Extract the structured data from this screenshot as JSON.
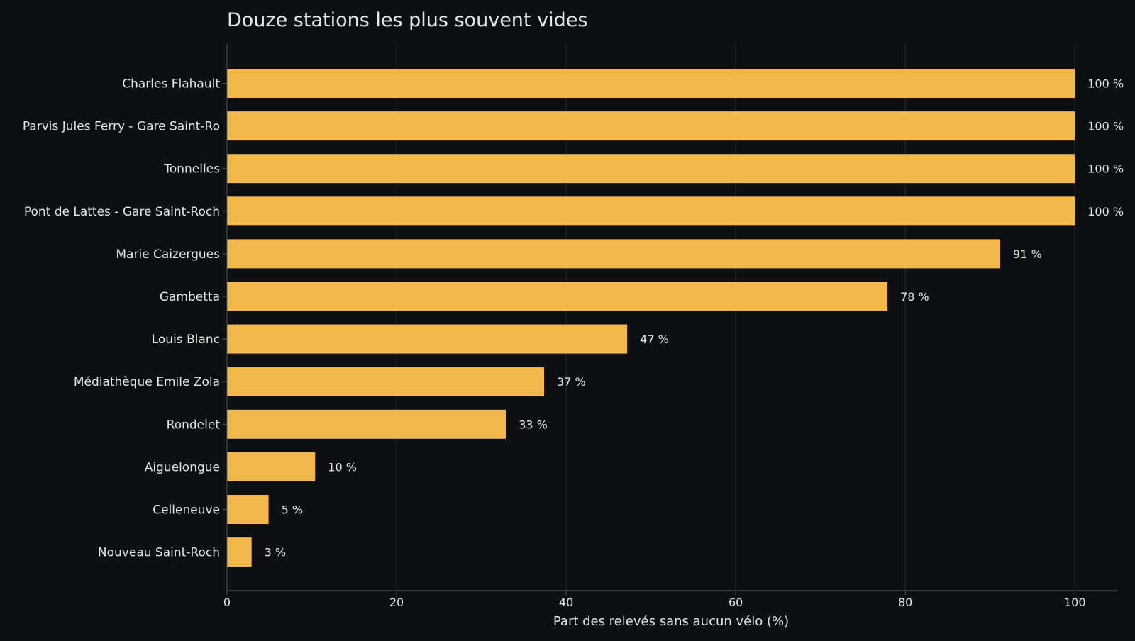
{
  "chart_data": {
    "type": "bar",
    "orientation": "horizontal",
    "title": "Douze stations les plus souvent vides",
    "xlabel": "Part des relevés sans aucun vélo (%)",
    "ylabel": "",
    "xlim": [
      0,
      105
    ],
    "xticks": [
      0,
      20,
      40,
      60,
      80,
      100
    ],
    "grid": "vertical",
    "categories": [
      "Charles Flahault",
      "Parvis Jules Ferry - Gare Saint-Ro",
      "Tonnelles",
      "Pont de Lattes - Gare Saint-Roch",
      "Marie Caizergues",
      "Gambetta",
      "Louis Blanc",
      "Médiathèque Emile Zola",
      "Rondelet",
      "Aiguelongue",
      "Celleneuve",
      "Nouveau Saint-Roch"
    ],
    "values": [
      100,
      100,
      100,
      100,
      91.2,
      77.9,
      47.2,
      37.4,
      32.9,
      10.4,
      4.9,
      2.9
    ],
    "labels": [
      "100 %",
      "100 %",
      "100 %",
      "100 %",
      "91 %",
      "78 %",
      "47 %",
      "37 %",
      "33 %",
      "10 %",
      "5 %",
      "3 %"
    ],
    "colors": {
      "bar": "#f2b84b",
      "background": "#0e0f12",
      "text": "#e6e6e6",
      "grid": "#2c2e33",
      "axis": "#555a61"
    }
  }
}
